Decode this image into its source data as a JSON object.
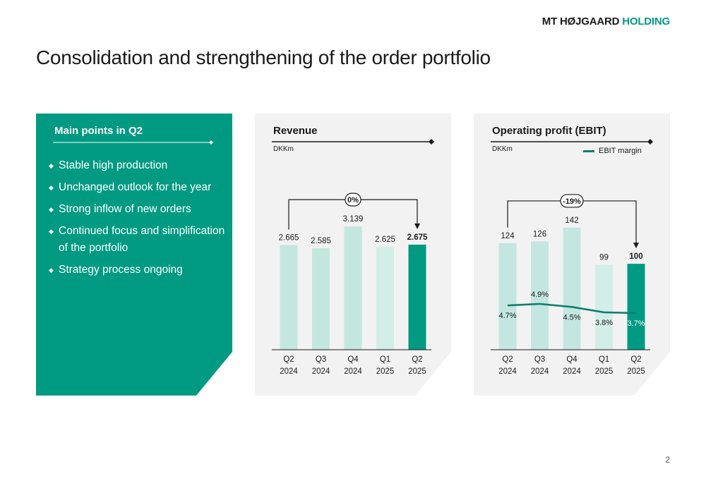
{
  "brand": {
    "part1": "MT HØJGAARD",
    "part2": "HOLDING",
    "accent": "#009a82"
  },
  "title": "Consolidation and strengthening of the order portfolio",
  "page_number": "2",
  "main_points": {
    "heading": "Main points in Q2",
    "items": [
      "Stable high production",
      "Unchanged outlook for the year",
      "Strong inflow of new orders",
      "Continued focus and simplification of the portfolio",
      "Strategy process ongoing"
    ]
  },
  "chart_data": [
    {
      "type": "bar",
      "title": "Revenue",
      "unit": "DKKm",
      "categories": [
        [
          "Q2",
          "2024"
        ],
        [
          "Q3",
          "2024"
        ],
        [
          "Q4",
          "2024"
        ],
        [
          "Q1",
          "2025"
        ],
        [
          "Q2",
          "2025"
        ]
      ],
      "values": [
        2665,
        2585,
        3139,
        2625,
        2675
      ],
      "value_labels": [
        "2.665",
        "2.585",
        "3.139",
        "2.625",
        "2.675"
      ],
      "highlight_index": 4,
      "change_label": "0%",
      "ylim": [
        0,
        3500
      ],
      "bar_colors": [
        "#c3e6e0",
        "#c3e6e0",
        "#c3e6e0",
        "#d3ede8",
        "#009a82"
      ]
    },
    {
      "type": "bar+line",
      "title": "Operating profit (EBIT)",
      "unit": "DKKm",
      "categories": [
        [
          "Q2",
          "2024"
        ],
        [
          "Q3",
          "2024"
        ],
        [
          "Q4",
          "2024"
        ],
        [
          "Q1",
          "2025"
        ],
        [
          "Q2",
          "2025"
        ]
      ],
      "values": [
        124,
        126,
        142,
        99,
        100
      ],
      "value_labels": [
        "124",
        "126",
        "142",
        "99",
        "100"
      ],
      "highlight_index": 4,
      "change_label": "-19%",
      "ylim": [
        0,
        160
      ],
      "bar_colors": [
        "#c3e6e0",
        "#c3e6e0",
        "#c3e6e0",
        "#d3ede8",
        "#009a82"
      ],
      "line": {
        "name": "EBIT margin",
        "values": [
          4.7,
          4.9,
          4.5,
          3.8,
          3.7
        ],
        "labels": [
          "4.7%",
          "4.9%",
          "4.5%",
          "3.8%",
          "3.7%"
        ],
        "color": "#0f7f6e"
      }
    }
  ]
}
